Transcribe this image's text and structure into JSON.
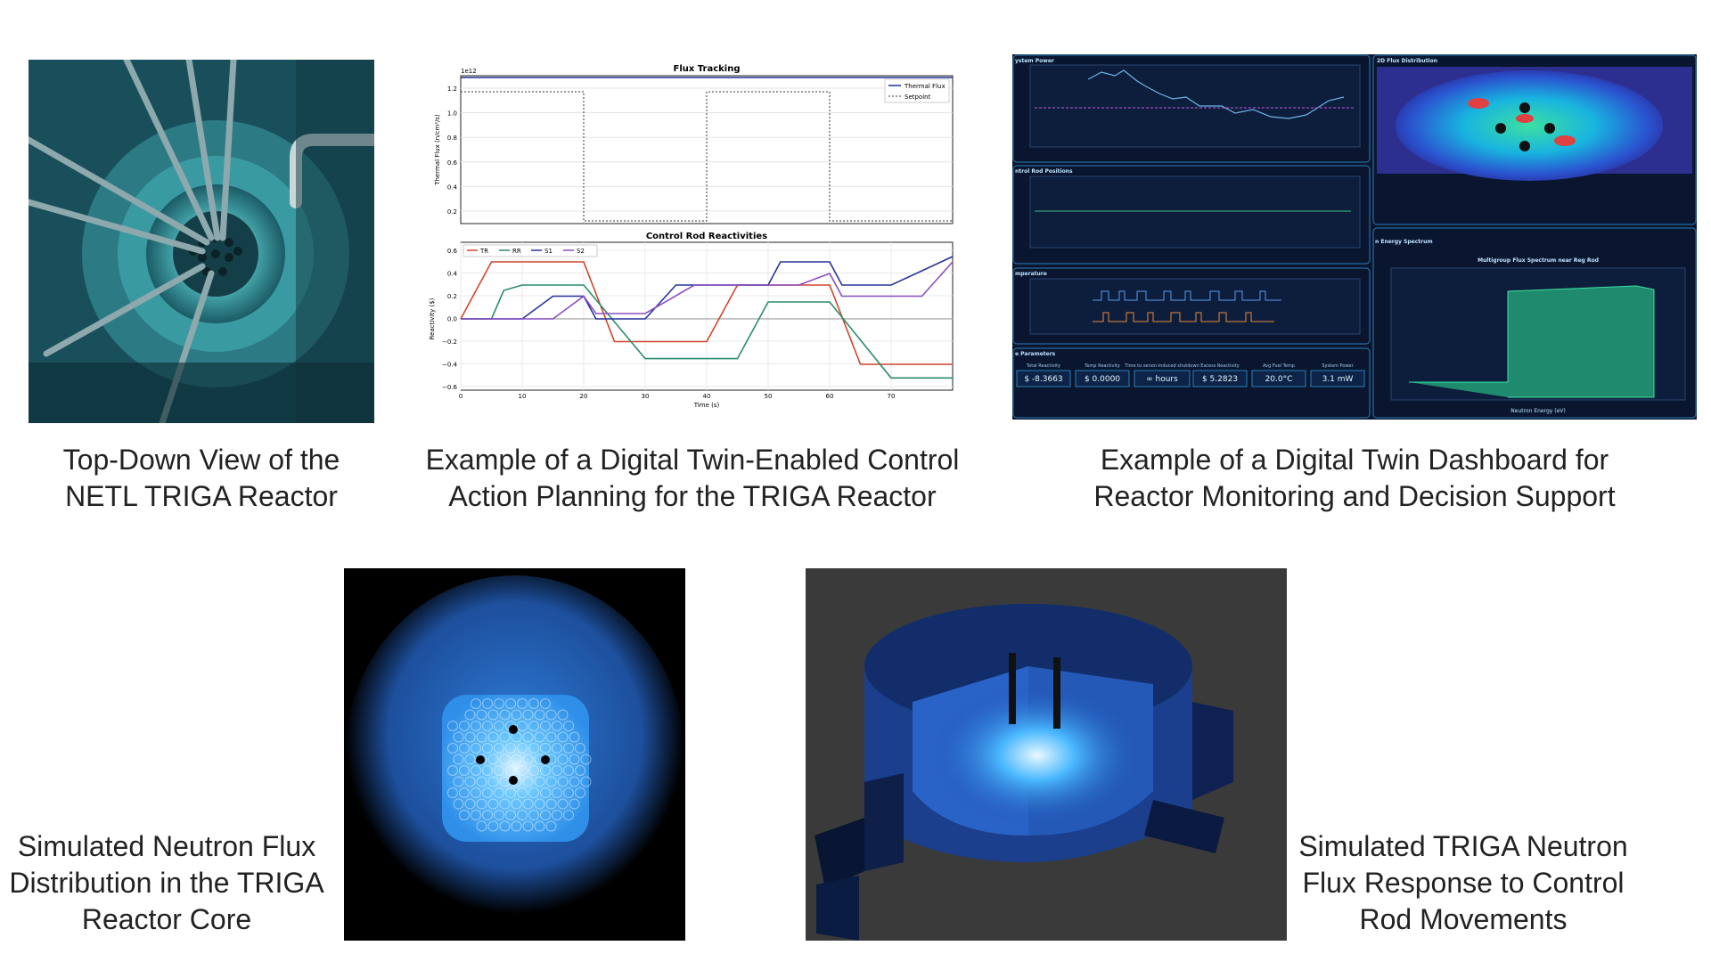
{
  "panels": [
    {
      "caption": [
        "Top-Down View of the",
        "NETL TRIGA Reactor"
      ]
    },
    {
      "caption": [
        "Example of a Digital Twin-Enabled Control",
        "Action Planning for the TRIGA Reactor"
      ]
    },
    {
      "caption": [
        "Example of a Digital Twin Dashboard for",
        "Reactor Monitoring and Decision Support"
      ]
    },
    {
      "caption": [
        "Simulated Neutron Flux",
        "Distribution in the TRIGA",
        "Reactor Core"
      ]
    },
    {
      "caption": [
        "Simulated TRIGA Neutron",
        "Flux Response to Control",
        "Rod Movements"
      ]
    }
  ],
  "flux_chart": {
    "title": "Flux Tracking",
    "exponent": "1e12",
    "y_label": "Thermal Flux (n/cm²/s)",
    "yticks": [
      "0.2",
      "0.4",
      "0.6",
      "0.8",
      "1.0",
      "1.2"
    ],
    "legend": [
      "Thermal Flux",
      "Setpoint"
    ]
  },
  "reactivity_chart": {
    "title": "Control Rod Reactivities",
    "y_label": "Reactivity ($)",
    "x_label": "Time (s)",
    "yticks": [
      "0.6",
      "0.4",
      "0.2",
      "0.0",
      "−0.2",
      "−0.4",
      "−0.6"
    ],
    "xticks": [
      "0",
      "10",
      "20",
      "30",
      "40",
      "50",
      "60",
      "70"
    ],
    "legend": [
      "TR",
      "RR",
      "S1",
      "S2"
    ]
  },
  "dashboard": {
    "power_title": "ystem Power",
    "flux_title": "2D Flux Distribution",
    "rods_title": "ntrol Rod Positions",
    "spectrum_panel_title": "n Energy Spectrum",
    "temp_title": "mperature",
    "params_title": "e Parameters",
    "spectrum_title": "Multigroup Flux Spectrum near Reg Rod",
    "spectrum_x_label": "Neutron Energy (eV)",
    "params": [
      {
        "label": "Total Reactivity",
        "value": "$ -8.3663"
      },
      {
        "label": "Temp Reactivity",
        "value": "$ 0.0000"
      },
      {
        "label": "Time to xenon-induced shutdown",
        "value": "∞ hours"
      },
      {
        "label": "Excess Reactivity",
        "value": "$ 5.2823"
      },
      {
        "label": "Avg Fuel Temp",
        "value": "20.0°C"
      },
      {
        "label": "System Power",
        "value": "3.1 mW"
      }
    ]
  }
}
